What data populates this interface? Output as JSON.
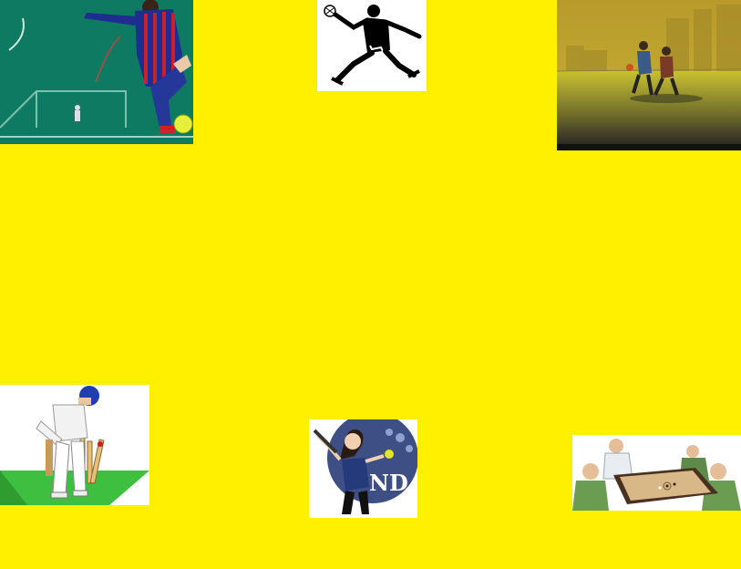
{
  "page": {
    "background_color": "#FFF000"
  },
  "images": [
    {
      "id": "soccer",
      "icon": "soccer-player-kicking-icon",
      "interactable": false
    },
    {
      "id": "handball",
      "icon": "handball-player-jumping-icon",
      "interactable": false
    },
    {
      "id": "basketball",
      "icon": "street-basketball-players-icon",
      "interactable": false
    },
    {
      "id": "cricket",
      "icon": "cricket-batsman-bowled-icon",
      "interactable": false
    },
    {
      "id": "softball",
      "icon": "softball-girl-player-icon",
      "interactable": false,
      "logo_text": "ND"
    },
    {
      "id": "carrom",
      "icon": "carrom-board-players-icon",
      "interactable": false
    }
  ]
}
